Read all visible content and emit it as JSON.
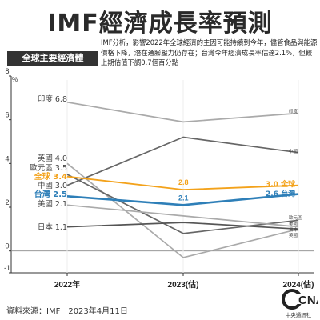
{
  "title": "IMF經濟成長率預測",
  "section_badge": "全球主要經濟體",
  "note": "IMF分析，影響2022年全球經濟的主因可能持續到今年，儘管食品與能源價格下降，潛在通膨壓力仍存在；台灣今年經濟成長率估達2.1%，但較上期估值下調0.7個百分點",
  "source": "資料來源：IMF　2023年4月11日",
  "publisher": "中央通訊社",
  "logo_text": "CNA",
  "colors": {
    "taiwan": "#2e7fb8",
    "world": "#f3a21b",
    "others": "#aaaaaa",
    "china": "#666666",
    "japan": "#555555",
    "axis": "#333333"
  },
  "chart_data": {
    "type": "line",
    "y_unit": "%",
    "ylim": [
      -1,
      8
    ],
    "yticks": [
      -1,
      0,
      2,
      4,
      6,
      8
    ],
    "categories": [
      "2022年",
      "2023(估)",
      "2024(估)"
    ],
    "series": [
      {
        "name": "印度",
        "values": [
          6.8,
          5.9,
          6.3
        ],
        "start_label": "印度 6.8",
        "end_label": "印度",
        "color": "#aaaaaa",
        "width": 1.7
      },
      {
        "name": "中國",
        "values": [
          3.0,
          5.2,
          4.5
        ],
        "start_label": "中國 3.0",
        "end_label": "中國",
        "color": "#666666",
        "width": 1.7
      },
      {
        "name": "英國",
        "values": [
          4.0,
          -0.3,
          1.0
        ],
        "start_label": "英國 4.0",
        "end_label": "英國",
        "color": "#aaaaaa",
        "width": 1.7
      },
      {
        "name": "歐元區",
        "values": [
          3.5,
          0.8,
          1.4
        ],
        "start_label": "歐元區 3.5",
        "end_label": "歐元區",
        "color": "#666666",
        "width": 1.7
      },
      {
        "name": "美國",
        "values": [
          2.1,
          1.6,
          1.1
        ],
        "start_label": "美國 2.1",
        "end_label": "美國",
        "color": "#aaaaaa",
        "width": 1.7
      },
      {
        "name": "日本",
        "values": [
          1.1,
          1.3,
          1.0
        ],
        "start_label": "日本 1.1",
        "end_label": "日本",
        "color": "#555555",
        "width": 1.7
      },
      {
        "name": "全球",
        "values": [
          3.4,
          2.8,
          3.0
        ],
        "start_label": "全球 3.4",
        "end_label": "3.0 全球",
        "point_labels": [
          "",
          "2.8",
          ""
        ],
        "color": "#f3a21b",
        "width": 1.8
      },
      {
        "name": "台灣",
        "values": [
          2.5,
          2.1,
          2.6
        ],
        "start_label": "台灣 2.5",
        "end_label": "2.6 台灣",
        "point_labels": [
          "",
          "2.1",
          ""
        ],
        "color": "#2e7fb8",
        "width": 2.6
      }
    ]
  }
}
